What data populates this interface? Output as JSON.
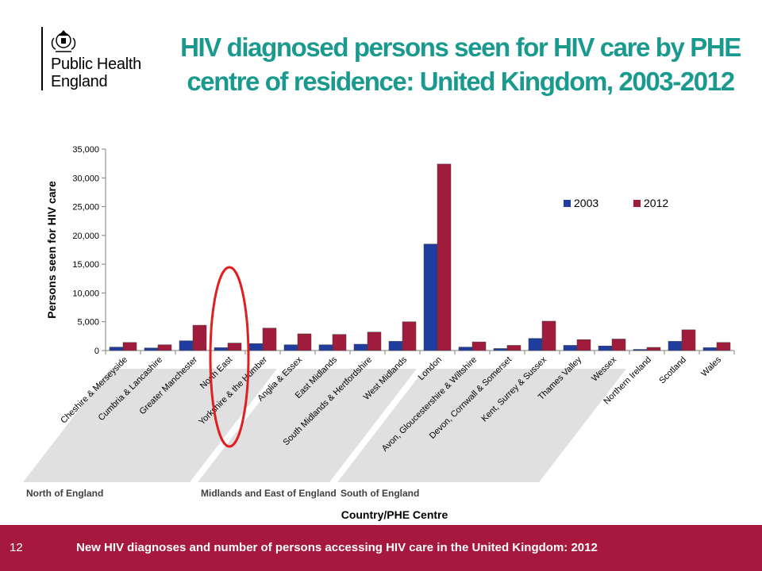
{
  "logo": {
    "crest_icon": "royal-crest-icon",
    "line1": "Public Health",
    "line2": "England"
  },
  "title": "HIV diagnosed persons seen for HIV care by PHE centre of residence: United Kingdom, 2003-2012",
  "footer": {
    "page_number": "12",
    "text": "New HIV diagnoses and number of persons accessing HIV care in the United Kingdom: 2012"
  },
  "chart_data": {
    "type": "bar",
    "ylabel": "Persons seen for HIV care",
    "xlabel": "Country/PHE Centre",
    "ylim": [
      0,
      35000
    ],
    "yticks": [
      "0",
      "5,000",
      "10,000",
      "15,000",
      "20,000",
      "25,000",
      "30,000",
      "35,000"
    ],
    "legend_position": "top-right",
    "categories": [
      "Cheshire & Merseyside",
      "Cumbria & Lancashire",
      "Greater Manchester",
      "North East",
      "Yorkshire & the Humber",
      "Anglia & Essex",
      "East Midlands",
      "South Midlands & Hertfordshire",
      "West Midlands",
      "London",
      "Avon, Gloucestershire & Wiltshire",
      "Devon, Cornwall & Somerset",
      "Kent, Surrey & Sussex",
      "Thames Valley",
      "Wessex",
      "Northern Ireland",
      "Scotland",
      "Wales"
    ],
    "series": [
      {
        "name": "2003",
        "color": "#1f3c9e",
        "values": [
          600,
          450,
          1700,
          500,
          1200,
          1000,
          1000,
          1100,
          1600,
          18500,
          600,
          350,
          2100,
          900,
          800,
          200,
          1600,
          500
        ]
      },
      {
        "name": "2012",
        "color": "#a01c3c",
        "values": [
          1400,
          1000,
          4400,
          1300,
          3900,
          2900,
          2800,
          3200,
          5000,
          32400,
          1500,
          900,
          5100,
          1900,
          2000,
          550,
          3600,
          1400
        ]
      }
    ],
    "groups": [
      {
        "label": "North of England",
        "start": 0,
        "end": 4
      },
      {
        "label": "Midlands and East of England",
        "start": 5,
        "end": 8
      },
      {
        "label": "South of England",
        "start": 9,
        "end": 14
      }
    ],
    "highlight": {
      "category": "North East",
      "color": "#e02020"
    }
  }
}
